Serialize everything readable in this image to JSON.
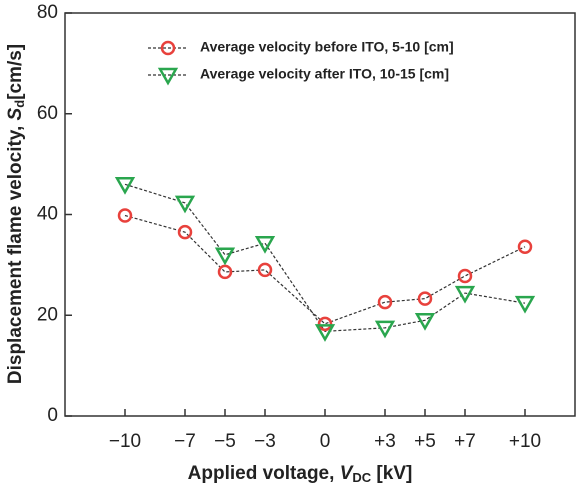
{
  "chart_data": {
    "type": "line",
    "xlabel": [
      "Applied voltage, ",
      "V",
      "DC",
      " [kV]"
    ],
    "ylabel": [
      "Displacement flame velocity, ",
      "S",
      "d",
      "[cm/s]"
    ],
    "x": [
      -10,
      -7,
      -5,
      -3,
      0,
      3,
      5,
      7,
      10
    ],
    "xlim": [
      -13,
      12.5
    ],
    "xticks": [
      {
        "value": -10,
        "label": "−10"
      },
      {
        "value": -7,
        "label": "−7"
      },
      {
        "value": -5,
        "label": "−5"
      },
      {
        "value": -3,
        "label": "−3"
      },
      0,
      {
        "value": 3,
        "label": "+3"
      },
      {
        "value": 5,
        "label": "+5"
      },
      {
        "value": 7,
        "label": "+7"
      },
      {
        "value": 10,
        "label": "+10"
      }
    ],
    "ylim": [
      0,
      80
    ],
    "yticks": [
      0,
      20,
      40,
      60,
      80
    ],
    "series": [
      {
        "name": "Average velocity before ITO, 5-10 [cm]",
        "color": "#e8413c",
        "marker": "circle",
        "values": [
          39.8,
          36.5,
          28.6,
          29.0,
          18.3,
          22.6,
          23.3,
          27.8,
          33.6
        ]
      },
      {
        "name": "Average velocity after ITO, 10-15 [cm]",
        "color": "#2aa64e",
        "marker": "triangle-down",
        "values": [
          46.0,
          42.3,
          32.0,
          34.3,
          16.8,
          17.5,
          19.0,
          24.4,
          22.4
        ]
      }
    ],
    "legend": "upper right"
  }
}
